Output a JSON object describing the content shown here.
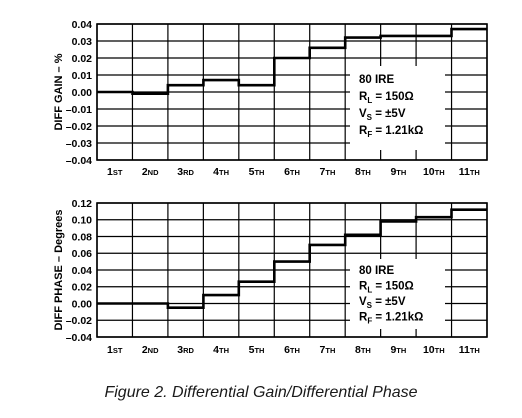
{
  "caption": "Figure 2. Differential Gain/Differential Phase",
  "chart_data": [
    {
      "type": "line",
      "step": true,
      "ylabel": "DIFF GAIN – %",
      "ylim": [
        -0.04,
        0.04
      ],
      "yticks": [
        0.04,
        0.03,
        0.02,
        0.01,
        0.0,
        -0.01,
        -0.02,
        -0.03,
        -0.04
      ],
      "ytick_labels": [
        "0.04",
        "0.03",
        "0.02",
        "0.01",
        "0.00",
        "–0.01",
        "–0.02",
        "–0.03",
        "–0.04"
      ],
      "categories": [
        {
          "num": "1",
          "suf": "ST"
        },
        {
          "num": "2",
          "suf": "ND"
        },
        {
          "num": "3",
          "suf": "RD"
        },
        {
          "num": "4",
          "suf": "TH"
        },
        {
          "num": "5",
          "suf": "TH"
        },
        {
          "num": "6",
          "suf": "TH"
        },
        {
          "num": "7",
          "suf": "TH"
        },
        {
          "num": "8",
          "suf": "TH"
        },
        {
          "num": "9",
          "suf": "TH"
        },
        {
          "num": "10",
          "suf": "TH"
        },
        {
          "num": "11",
          "suf": "TH"
        }
      ],
      "values": [
        0.0,
        -0.001,
        0.004,
        0.007,
        0.004,
        0.02,
        0.026,
        0.032,
        0.033,
        0.033,
        0.037
      ],
      "grid": true,
      "annotation": {
        "lines": [
          {
            "main": "80 IRE"
          },
          {
            "main": "R",
            "sub": "L",
            "rest": " = 150Ω"
          },
          {
            "main": "V",
            "sub": "S",
            "rest": " = ±5V"
          },
          {
            "main": "R",
            "sub": "F",
            "rest": " = 1.21kΩ"
          }
        ]
      }
    },
    {
      "type": "line",
      "step": true,
      "ylabel": "DIFF PHASE – Degrees",
      "ylim": [
        -0.04,
        0.12
      ],
      "yticks": [
        0.12,
        0.1,
        0.08,
        0.06,
        0.04,
        0.02,
        0.0,
        -0.02,
        -0.04
      ],
      "ytick_labels": [
        "0.12",
        "0.10",
        "0.08",
        "0.06",
        "0.04",
        "0.02",
        "0.00",
        "–0.02",
        "–0.04"
      ],
      "categories": [
        {
          "num": "1",
          "suf": "ST"
        },
        {
          "num": "2",
          "suf": "ND"
        },
        {
          "num": "3",
          "suf": "RD"
        },
        {
          "num": "4",
          "suf": "TH"
        },
        {
          "num": "5",
          "suf": "TH"
        },
        {
          "num": "6",
          "suf": "TH"
        },
        {
          "num": "7",
          "suf": "TH"
        },
        {
          "num": "8",
          "suf": "TH"
        },
        {
          "num": "9",
          "suf": "TH"
        },
        {
          "num": "10",
          "suf": "TH"
        },
        {
          "num": "11",
          "suf": "TH"
        }
      ],
      "values": [
        0.0,
        0.0,
        -0.005,
        0.01,
        0.026,
        0.05,
        0.07,
        0.082,
        0.098,
        0.103,
        0.112
      ],
      "grid": true,
      "annotation": {
        "lines": [
          {
            "main": "80 IRE"
          },
          {
            "main": "R",
            "sub": "L",
            "rest": " = 150Ω"
          },
          {
            "main": "V",
            "sub": "S",
            "rest": " = ±5V"
          },
          {
            "main": "R",
            "sub": "F",
            "rest": " = 1.21kΩ"
          }
        ]
      }
    }
  ]
}
